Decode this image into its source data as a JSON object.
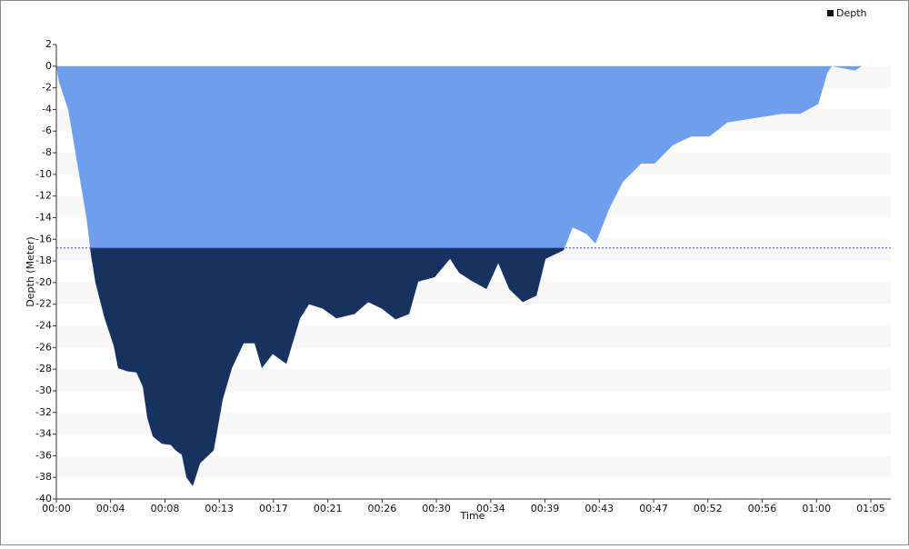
{
  "chart_data": {
    "type": "area",
    "x_label": "Time",
    "y_label": "Depth (Meter)",
    "xlim": [
      0,
      66.6
    ],
    "ylim": [
      -40,
      2
    ],
    "xticks": [
      {
        "value": 0,
        "label": "00:00"
      },
      {
        "value": 4.33,
        "label": "00:04"
      },
      {
        "value": 8.67,
        "label": "00:08"
      },
      {
        "value": 13,
        "label": "00:13"
      },
      {
        "value": 17.33,
        "label": "00:17"
      },
      {
        "value": 21.67,
        "label": "00:21"
      },
      {
        "value": 26,
        "label": "00:26"
      },
      {
        "value": 30.33,
        "label": "00:30"
      },
      {
        "value": 34.67,
        "label": "00:34"
      },
      {
        "value": 39,
        "label": "00:39"
      },
      {
        "value": 43.33,
        "label": "00:43"
      },
      {
        "value": 47.67,
        "label": "00:47"
      },
      {
        "value": 52,
        "label": "00:52"
      },
      {
        "value": 56.33,
        "label": "00:56"
      },
      {
        "value": 60.67,
        "label": "01:00"
      },
      {
        "value": 65,
        "label": "01:05"
      }
    ],
    "yticks": [
      2,
      0,
      -2,
      -4,
      -6,
      -8,
      -10,
      -12,
      -14,
      -16,
      -18,
      -20,
      -22,
      -24,
      -26,
      -28,
      -30,
      -32,
      -34,
      -36,
      -38,
      -40
    ],
    "reference_line": -16.8,
    "legend": "top-right",
    "series": [
      {
        "name": "Depth",
        "color": "#6f9fec",
        "deep_color": "#17325f",
        "x": [
          0,
          0.2,
          0.94,
          1.67,
          2.4,
          2.76,
          3.12,
          3.85,
          4.57,
          4.93,
          5.66,
          6.39,
          6.9,
          7.26,
          7.69,
          8.42,
          9.14,
          9.5,
          10.01,
          10.38,
          10.89,
          11.47,
          12.56,
          13.28,
          14.01,
          14.95,
          15.82,
          16.4,
          17.27,
          18.36,
          19.45,
          20.17,
          21.26,
          22.35,
          23.8,
          24.89,
          25.97,
          27.07,
          28.16,
          28.88,
          30.19,
          31.42,
          32.15,
          33.24,
          34.33,
          35.27,
          36.14,
          37.23,
          38.32,
          39.04,
          40.49,
          41.21,
          42.3,
          43.03,
          44.12,
          45.21,
          46.66,
          47.75,
          49.2,
          50.65,
          52.1,
          53.56,
          55.73,
          57.9,
          59.36,
          60.81,
          61.54,
          61.9,
          63.72,
          64.3
        ],
        "values": [
          0,
          -1.4,
          -4,
          -9,
          -14,
          -17.4,
          -20,
          -23.3,
          -25.8,
          -27.9,
          -28.2,
          -28.3,
          -29.6,
          -32.5,
          -34.2,
          -34.9,
          -35,
          -35.5,
          -35.9,
          -38,
          -38.8,
          -36.7,
          -35.5,
          -30.8,
          -27.9,
          -25.6,
          -25.6,
          -27.9,
          -26.6,
          -27.5,
          -23.3,
          -22,
          -22.4,
          -23.3,
          -22.9,
          -21.8,
          -22.4,
          -23.4,
          -22.9,
          -19.9,
          -19.5,
          -17.8,
          -19.1,
          -19.9,
          -20.6,
          -18.2,
          -20.6,
          -21.8,
          -21.2,
          -17.8,
          -17,
          -14.9,
          -15.5,
          -16.4,
          -13.2,
          -10.7,
          -9,
          -9,
          -7.3,
          -6.5,
          -6.5,
          -5.2,
          -4.8,
          -4.4,
          -4.4,
          -3.5,
          -0.6,
          0,
          -0.4,
          0
        ]
      }
    ]
  }
}
